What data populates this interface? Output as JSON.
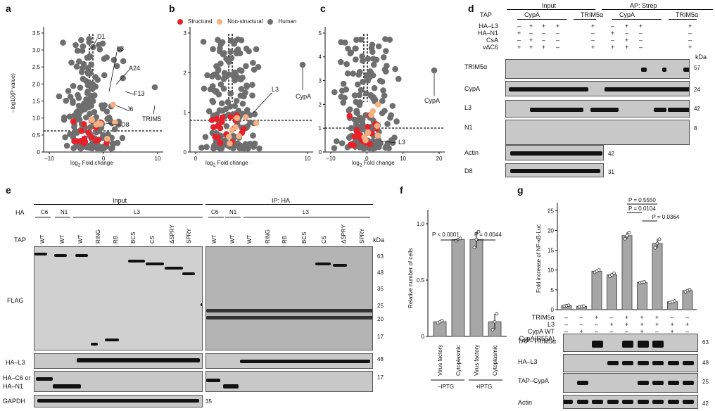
{
  "panels": {
    "a": "a",
    "b": "b",
    "c": "c",
    "d": "d",
    "e": "e",
    "f": "f",
    "g": "g"
  },
  "volcano_common": {
    "ylabel": "–log10(P value)",
    "xlabel": "log2 Fold change"
  },
  "volcano_legend": [
    "Structural",
    "Non-structural",
    "Human"
  ],
  "colors": {
    "structural": "#e8202a",
    "nonstructural": "#f4b183",
    "human": "#6e6e6e"
  },
  "volcano_a": {
    "xticks": [
      "–10",
      "0",
      "10"
    ],
    "yticks": [
      "0",
      "0.5",
      "1.0",
      "1.5",
      "2.0",
      "2.5",
      "3.0",
      "3.5"
    ],
    "labels": [
      "D1",
      "L3",
      "A24",
      "F13",
      "J6",
      "D8",
      "TRIM5"
    ]
  },
  "volcano_b": {
    "xticks": [
      "0",
      "10"
    ],
    "yticks": [
      "0",
      "1",
      "2",
      "3"
    ],
    "labels": [
      "L3",
      "CypA"
    ]
  },
  "volcano_c": {
    "xticks": [
      "–10",
      "0",
      "10",
      "20"
    ],
    "yticks": [
      "0",
      "1",
      "2",
      "3",
      "4",
      "5"
    ],
    "labels": [
      "L3",
      "CypA"
    ]
  },
  "panel_d": {
    "input": "Input",
    "ap": "AP: Strep",
    "tap": "TAP",
    "groups": [
      "CypA",
      "TRIM5α",
      "CypA",
      "TRIM5α"
    ],
    "rows": [
      "HA–L3",
      "HA–N1",
      "CsA",
      "vΔC6"
    ],
    "signs": [
      [
        "–",
        "+",
        "+",
        "+",
        "+",
        "–",
        "+",
        "+",
        "+"
      ],
      [
        "+",
        "–",
        "–",
        "–",
        "–",
        "+",
        "–",
        "–",
        "–"
      ],
      [
        "–",
        "+",
        "–",
        "–",
        "–",
        "–",
        "+",
        "–",
        "–"
      ],
      [
        "+",
        "+",
        "+",
        "–",
        "+",
        "+",
        "+",
        "–",
        "+"
      ]
    ],
    "kda": "kDa",
    "blots": [
      "TRIM5α",
      "CypA",
      "L3",
      "N1",
      "Actin",
      "D8"
    ],
    "markers": [
      "57",
      "24",
      "42",
      "8",
      "42",
      "31"
    ]
  },
  "panel_e": {
    "input": "Input",
    "ip": "IP: HA",
    "ha": "HA",
    "tap": "TAP",
    "ha_groups": [
      "C6",
      "N1",
      "L3",
      "C6",
      "N1",
      "L3"
    ],
    "tap_lanes": [
      "WT",
      "WT",
      "WT",
      "RING",
      "RB",
      "BCS",
      "CS",
      "ΔSPRY",
      "SPRY"
    ],
    "kda": "kDa",
    "markers": [
      "63",
      "48",
      "35",
      "25",
      "20",
      "17"
    ],
    "blots": [
      "FLAG",
      "HA–L3",
      "HA–C6 or",
      "HA–N1",
      "GAPDH"
    ],
    "side_markers": [
      "48",
      "17",
      "35"
    ]
  },
  "chart_data": [
    {
      "type": "bar",
      "panel": "f",
      "categories": [
        "Virus factory",
        "Cytoplasmic",
        "Virus factory",
        "Cytoplasmic"
      ],
      "groups": [
        "–IPTG",
        "+IPTG"
      ],
      "values": [
        0.13,
        0.86,
        0.86,
        0.13
      ],
      "errors": [
        0.01,
        0.01,
        0.07,
        0.07
      ],
      "ylabel": "Relative number of cells",
      "ylim": [
        0,
        1.0
      ],
      "yticks": [
        "0",
        "0.5",
        "1.0"
      ],
      "annotations": [
        "P < 0.0001",
        "P = 0.0044"
      ]
    },
    {
      "type": "bar",
      "panel": "g",
      "values": [
        1.0,
        0.8,
        9.7,
        8.8,
        18.7,
        6.9,
        16.7,
        2.0,
        4.8
      ],
      "errors": [
        0.1,
        0.1,
        0.3,
        0.4,
        0.8,
        0.1,
        1.1,
        0.2,
        0.3
      ],
      "ylabel": "Fold increase of NF-κB-Luc",
      "ylim": [
        0,
        27
      ],
      "yticks": [
        "0",
        "5",
        "10",
        "15",
        "20",
        "25"
      ],
      "annotations": [
        "P = 0.5550",
        "P = 0.0104",
        "P = 0.0364"
      ],
      "rows": [
        "TRIM5α",
        "L3",
        "CypA WT",
        "CypA(R55A)"
      ],
      "signs": [
        [
          "–",
          "–",
          "+",
          "–",
          "+",
          "+",
          "+",
          "–",
          "–"
        ],
        [
          "–",
          "–",
          "–",
          "+",
          "+",
          "+",
          "+",
          "+",
          "+"
        ],
        [
          "–",
          "+",
          "–",
          "–",
          "–",
          "+",
          "–",
          "+",
          "–"
        ],
        [
          "–",
          "–",
          "–",
          "–",
          "–",
          "–",
          "+",
          "–",
          "+"
        ]
      ],
      "blots": [
        "TAP–TRIM5α",
        "HA–L3",
        "TAP–CypA",
        "Actin"
      ],
      "markers": [
        "63",
        "48",
        "25",
        "42"
      ]
    }
  ]
}
